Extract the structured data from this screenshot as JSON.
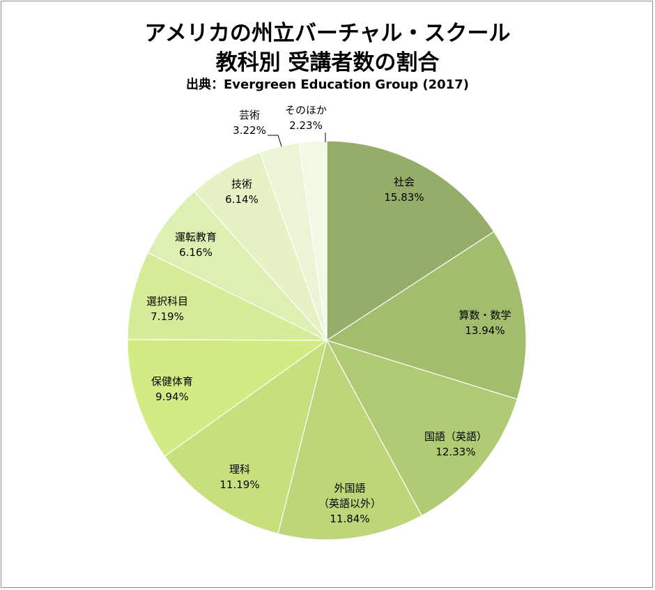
{
  "chart_data": {
    "type": "pie",
    "title": "アメリカの州立バーチャル・スクール",
    "subtitle": "教科別 受講者数の割合",
    "source": "出典：Evergreen Education Group (2017)",
    "slices": [
      {
        "label": [
          "社会"
        ],
        "value": 15.83,
        "value_text": "15.83%",
        "color": "#95ad68"
      },
      {
        "label": [
          "算数・数学"
        ],
        "value": 13.94,
        "value_text": "13.94%",
        "color": "#a3bd6e"
      },
      {
        "label": [
          "国語（英語）"
        ],
        "value": 12.33,
        "value_text": "12.33%",
        "color": "#b0cb74"
      },
      {
        "label": [
          "外国語",
          "（英語以外）"
        ],
        "value": 11.84,
        "value_text": "11.84%",
        "color": "#bcd679"
      },
      {
        "label": [
          "理科"
        ],
        "value": 11.19,
        "value_text": "11.19%",
        "color": "#c7e07d"
      },
      {
        "label": [
          "保健体育"
        ],
        "value": 9.94,
        "value_text": "9.94%",
        "color": "#d2eb82"
      },
      {
        "label": [
          "選択科目"
        ],
        "value": 7.19,
        "value_text": "7.19%",
        "color": "#d7ec98"
      },
      {
        "label": [
          "運転教育"
        ],
        "value": 6.16,
        "value_text": "6.16%",
        "color": "#deefb2"
      },
      {
        "label": [
          "技術"
        ],
        "value": 6.14,
        "value_text": "6.14%",
        "color": "#e4f2c6"
      },
      {
        "label": [
          "芸術"
        ],
        "value": 3.22,
        "value_text": "3.22%",
        "color": "#eaf5d6"
      },
      {
        "label": [
          "そのほか"
        ],
        "value": 2.23,
        "value_text": "2.23%",
        "color": "#f1f8e3"
      }
    ]
  }
}
